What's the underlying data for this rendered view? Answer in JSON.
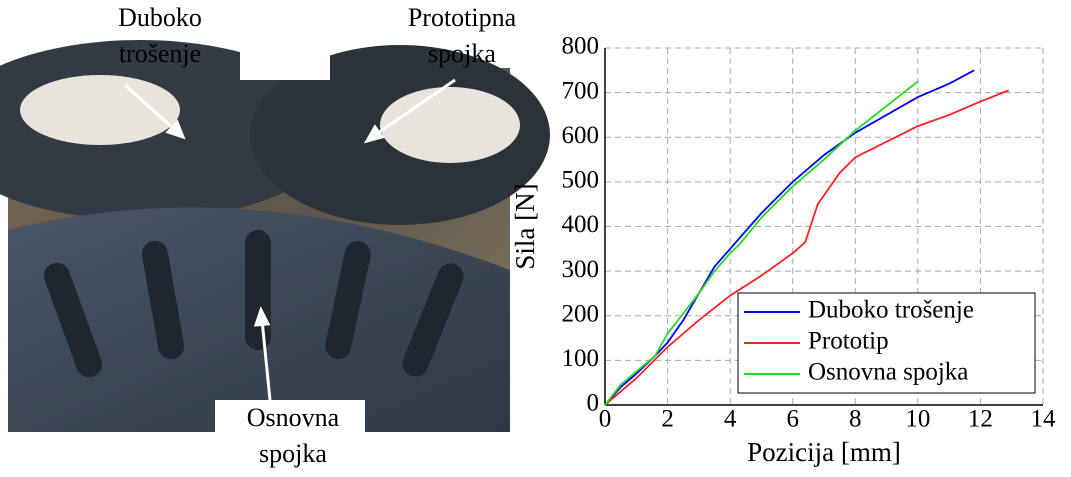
{
  "photo_labels": [
    {
      "lines": [
        "Duboko",
        "trošenje"
      ]
    },
    {
      "lines": [
        "Prototipna",
        "spojka"
      ]
    },
    {
      "lines": [
        "Osnovna",
        "spojka"
      ]
    }
  ],
  "chart_data": {
    "type": "line",
    "xlabel": "Pozicija [mm]",
    "ylabel": "Sila [N]",
    "xlim": [
      0,
      14
    ],
    "ylim": [
      0,
      800
    ],
    "xticks": [
      0,
      2,
      4,
      6,
      8,
      10,
      12,
      14
    ],
    "yticks": [
      0,
      100,
      200,
      300,
      400,
      500,
      600,
      700,
      800
    ],
    "grid": true,
    "legend": "lower right",
    "series": [
      {
        "name": "Duboko trošenje",
        "color": "#0000ff",
        "x": [
          0,
          0.5,
          1,
          1.6,
          2,
          2.5,
          3,
          3.5,
          4,
          5,
          6,
          7,
          8,
          9,
          10,
          11,
          11.8
        ],
        "values": [
          0,
          40,
          70,
          110,
          140,
          190,
          250,
          310,
          350,
          430,
          500,
          560,
          610,
          650,
          690,
          720,
          750
        ]
      },
      {
        "name": "Prototip",
        "color": "#ff2020",
        "x": [
          0,
          1,
          2,
          3,
          4,
          5,
          6,
          6.4,
          6.8,
          7.5,
          8,
          9,
          10,
          11,
          12,
          12.9
        ],
        "values": [
          0,
          60,
          130,
          190,
          245,
          290,
          340,
          365,
          450,
          520,
          555,
          590,
          625,
          650,
          680,
          705
        ]
      },
      {
        "name": "Osnovna spojka",
        "color": "#22dd22",
        "x": [
          0,
          0.5,
          1,
          1.6,
          2,
          3,
          3.5,
          4,
          4.3,
          5,
          6,
          7,
          8,
          9,
          10
        ],
        "values": [
          0,
          45,
          75,
          110,
          160,
          250,
          300,
          340,
          360,
          420,
          490,
          550,
          615,
          670,
          725
        ]
      }
    ]
  }
}
